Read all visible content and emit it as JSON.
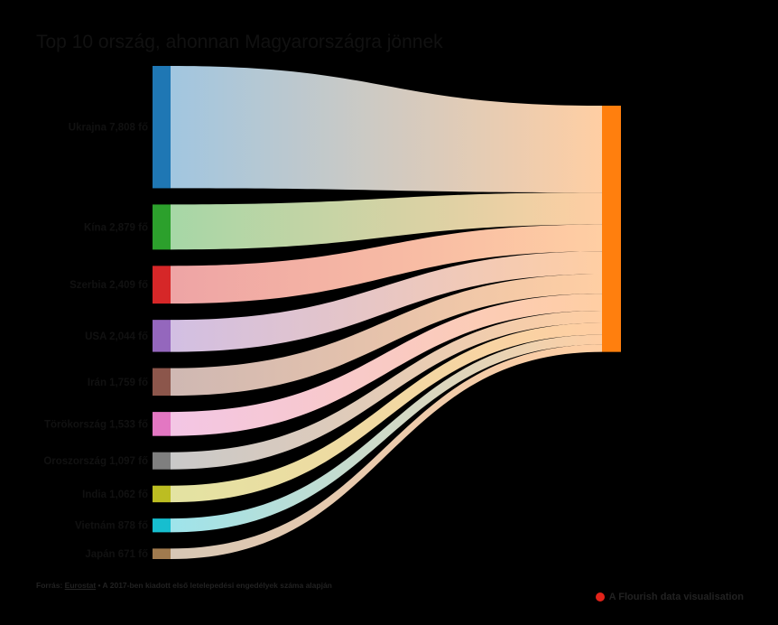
{
  "title": "Top 10 ország, ahonnan Magyarországra jönnek",
  "footer": {
    "prefix": "Forrás:",
    "source_link": "Eurostat",
    "note": "• A 2017-ben kiadott első letelepedési engedélyek száma alapján"
  },
  "credit": "A Flourish data visualisation",
  "chart_data": {
    "type": "sankey",
    "title": "Top 10 ország, ahonnan Magyarországra jönnek",
    "target": {
      "color": "#ff7f0e"
    },
    "nodes": [
      {
        "label": "Ukrajna 7,808 fő",
        "value": 7808,
        "color": "#1f77b4"
      },
      {
        "label": "Kína 2,879 fő",
        "value": 2879,
        "color": "#2ca02c"
      },
      {
        "label": "Szerbia 2,409 fő",
        "value": 2409,
        "color": "#d62728"
      },
      {
        "label": "USA 2,044 fő",
        "value": 2044,
        "color": "#9467bd"
      },
      {
        "label": "Irán 1,759 fő",
        "value": 1759,
        "color": "#8c564b"
      },
      {
        "label": "Törökország 1,533 fő",
        "value": 1533,
        "color": "#e377c2"
      },
      {
        "label": "Oroszország 1,097 fő",
        "value": 1097,
        "color": "#7f7f7f"
      },
      {
        "label": "India 1,062 fő",
        "value": 1062,
        "color": "#bcbd22"
      },
      {
        "label": "Vietnám 878 fő",
        "value": 878,
        "color": "#17becf"
      },
      {
        "label": "Japán 671 fő",
        "value": 671,
        "color": "#a07a4e"
      }
    ]
  }
}
